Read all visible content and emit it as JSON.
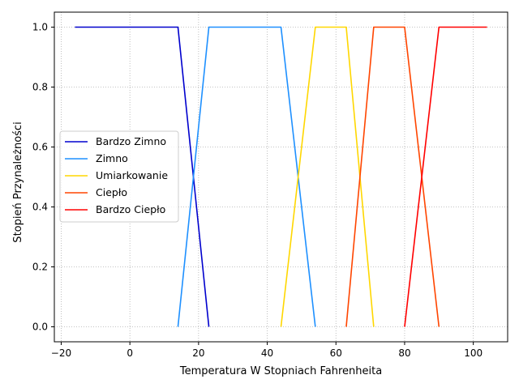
{
  "chart_data": {
    "type": "line",
    "title": "",
    "xlabel": "Temperatura W Stopniach Fahrenheita",
    "ylabel": "Stopień Przynależności",
    "xlim": [
      -22,
      110
    ],
    "ylim": [
      -0.05,
      1.05
    ],
    "x_ticks": [
      -20,
      0,
      20,
      40,
      60,
      80,
      100
    ],
    "x_tick_labels": [
      "−20",
      "0",
      "20",
      "40",
      "60",
      "80",
      "100"
    ],
    "y_ticks": [
      0.0,
      0.2,
      0.4,
      0.6,
      0.8,
      1.0
    ],
    "y_tick_labels": [
      "0.0",
      "0.2",
      "0.4",
      "0.6",
      "0.8",
      "1.0"
    ],
    "grid": true,
    "grid_style": "dotted",
    "legend_position": "center-left",
    "series": [
      {
        "name": "Bardzo Zimno",
        "color": "#0000cd",
        "x": [
          -16,
          14,
          23
        ],
        "y": [
          1,
          1,
          0
        ]
      },
      {
        "name": "Zimno",
        "color": "#1e90ff",
        "x": [
          14,
          23,
          44,
          54
        ],
        "y": [
          0,
          1,
          1,
          0
        ]
      },
      {
        "name": "Umiarkowanie",
        "color": "#ffd700",
        "x": [
          44,
          54,
          63,
          71
        ],
        "y": [
          0,
          1,
          1,
          0
        ]
      },
      {
        "name": "Ciepło",
        "color": "#ff4500",
        "x": [
          63,
          71,
          80,
          90
        ],
        "y": [
          0,
          1,
          1,
          0
        ]
      },
      {
        "name": "Bardzo Ciepło",
        "color": "#ff0000",
        "x": [
          80,
          90,
          104
        ],
        "y": [
          0,
          1,
          1
        ]
      }
    ]
  }
}
